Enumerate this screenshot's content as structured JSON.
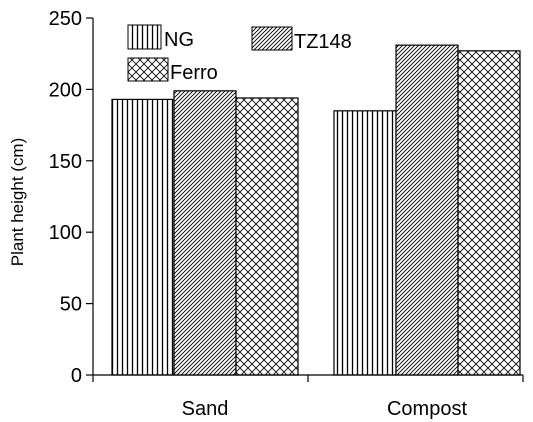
{
  "chart_data": {
    "type": "bar",
    "categories": [
      "Sand",
      "Compost"
    ],
    "series": [
      {
        "name": "NG",
        "values": [
          193,
          185
        ],
        "pattern": "vertical-lines"
      },
      {
        "name": "TZ148",
        "values": [
          199,
          231
        ],
        "pattern": "diagonal-hatch"
      },
      {
        "name": "Ferro",
        "values": [
          194,
          227
        ],
        "pattern": "cross-hatch"
      }
    ],
    "title": "",
    "xlabel": "",
    "ylabel": "Plant height (cm)",
    "ylim": [
      0,
      250
    ],
    "yticks": [
      0,
      50,
      100,
      150,
      200,
      250
    ],
    "grid": false,
    "legend_position": "top-left, inside plot",
    "colors": {
      "bar_fill": "#ffffff",
      "bar_stroke": "#000000",
      "axis": "#000000"
    }
  }
}
